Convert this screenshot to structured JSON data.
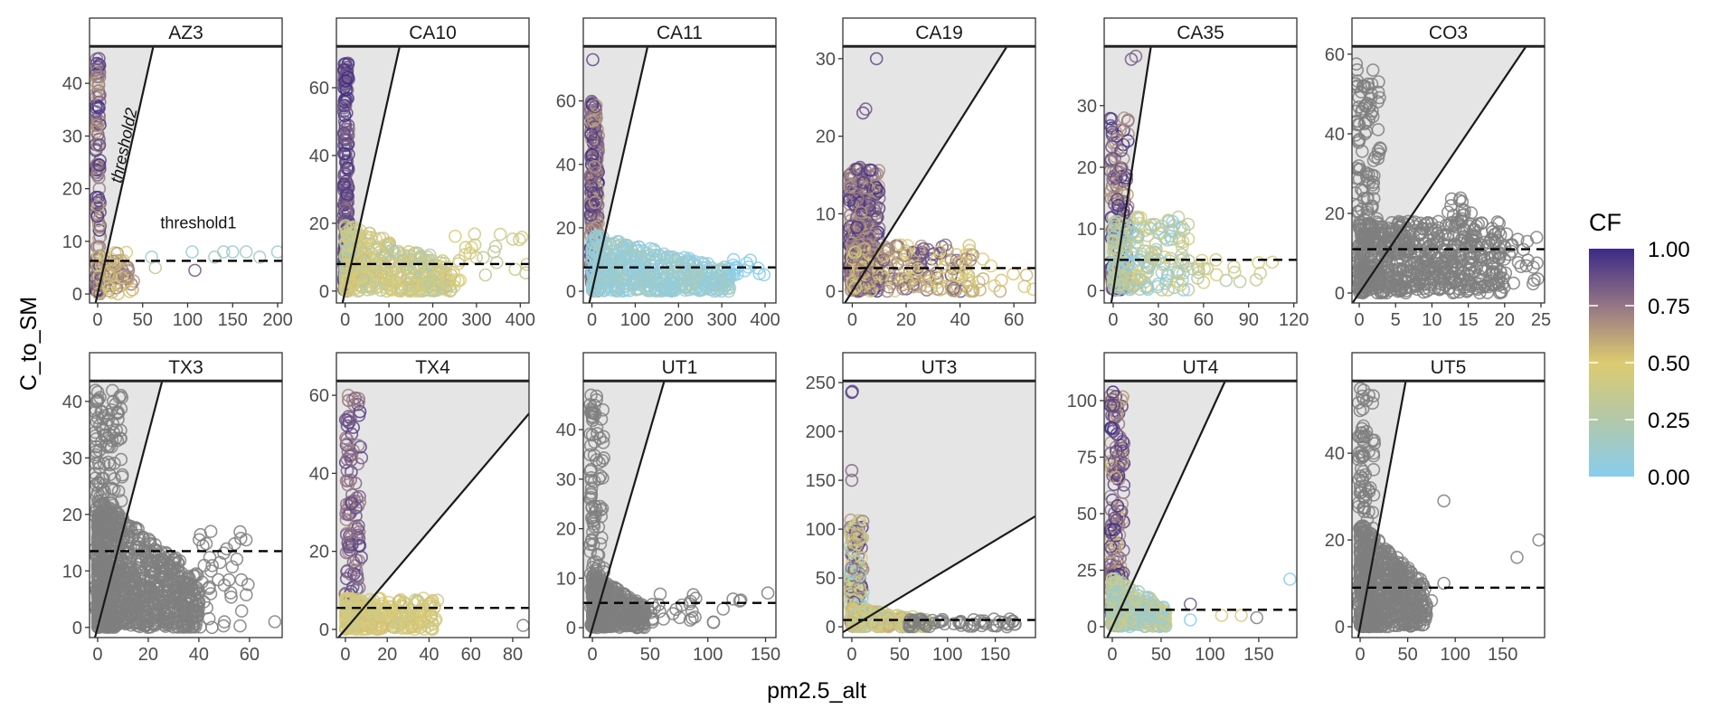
{
  "chart_data": {
    "type": "scatter",
    "facets_layout": "2 rows x 6 columns",
    "xlabel": "pm2.5_alt",
    "ylabel": "C_to_SM",
    "legend": {
      "title": "CF",
      "labels": [
        "1.00",
        "0.75",
        "0.50",
        "0.25",
        "0.00"
      ],
      "range": [
        0,
        1
      ],
      "placement": "right"
    },
    "colorscale": [
      [
        0,
        "#88cdee"
      ],
      [
        0.25,
        "#b3c8a8"
      ],
      [
        0.5,
        "#ddcb70"
      ],
      [
        0.75,
        "#957585"
      ],
      [
        1,
        "#3b2a86"
      ]
    ],
    "na_color": "#7f7f7f",
    "annotations": {
      "threshold1": "threshold1",
      "threshold2": "threshold2"
    },
    "panels": [
      {
        "title": "AZ3",
        "xlim": [
          -9,
          205
        ],
        "ylim": [
          -1.7,
          46.9
        ],
        "xticks": [
          0,
          50,
          100,
          150,
          200
        ],
        "yticks": [
          0,
          10,
          20,
          30,
          40
        ],
        "threshold1": 6.3,
        "threshold2_slope": 0.76,
        "clusters": [
          {
            "n": 120,
            "x": [
              -2,
              3
            ],
            "y": [
              0,
              45
            ],
            "cf": [
              0.6,
              1
            ]
          },
          {
            "n": 80,
            "x": [
              0,
              40
            ],
            "y": [
              0,
              8
            ],
            "cf": [
              0.4,
              0.8
            ]
          }
        ],
        "points": [
          [
            60,
            7,
            0.15
          ],
          [
            105,
            8,
            0.1
          ],
          [
            108,
            4.5,
            0.85
          ],
          [
            130,
            7,
            0.2
          ],
          [
            140,
            8,
            0.15
          ],
          [
            150,
            8,
            0.1
          ],
          [
            165,
            8,
            0.15
          ],
          [
            180,
            7,
            0.2
          ],
          [
            200,
            8,
            0.1
          ],
          [
            64,
            5,
            0.3
          ]
        ]
      },
      {
        "title": "CA10",
        "xlim": [
          -20,
          420
        ],
        "ylim": [
          -3.5,
          72
        ],
        "xticks": [
          0,
          100,
          200,
          300,
          400
        ],
        "yticks": [
          0,
          20,
          40,
          60
        ],
        "threshold1": 8,
        "threshold2_slope": 0.58,
        "clusters": [
          {
            "n": 200,
            "x": [
              -3,
              8
            ],
            "y": [
              0,
              68
            ],
            "cf": [
              0.75,
              1
            ]
          },
          {
            "n": 400,
            "x": [
              0,
              250
            ],
            "y": [
              0,
              20
            ],
            "cf": [
              0.2,
              0.55
            ],
            "shape": "tri"
          },
          {
            "n": 25,
            "x": [
              250,
              420
            ],
            "y": [
              3,
              17
            ],
            "cf": [
              0.3,
              0.5
            ]
          }
        ],
        "points": []
      },
      {
        "title": "CA11",
        "xlim": [
          -20,
          425
        ],
        "ylim": [
          -3.7,
          77
        ],
        "xticks": [
          0,
          100,
          200,
          300,
          400
        ],
        "yticks": [
          0,
          20,
          40,
          60
        ],
        "threshold1": 7.5,
        "threshold2_slope": 0.6,
        "clusters": [
          {
            "n": 250,
            "x": [
              -3,
              15
            ],
            "y": [
              0,
              60
            ],
            "cf": [
              0.6,
              1
            ]
          },
          {
            "n": 500,
            "x": [
              0,
              320
            ],
            "y": [
              0,
              18
            ],
            "cf": [
              0,
              0.2
            ],
            "shape": "tri"
          },
          {
            "n": 15,
            "x": [
              320,
              420
            ],
            "y": [
              5,
              10
            ],
            "cf": [
              0,
              0.05
            ]
          }
        ],
        "points": [
          [
            2,
            73,
            0.9
          ]
        ]
      },
      {
        "title": "CA19",
        "xlim": [
          -3.5,
          68
        ],
        "ylim": [
          -1.5,
          31.5
        ],
        "xticks": [
          0,
          20,
          40,
          60
        ],
        "yticks": [
          0,
          10,
          20,
          30
        ],
        "threshold1": 3,
        "threshold2_slope": 0.55,
        "clusters": [
          {
            "n": 300,
            "x": [
              -1,
              10
            ],
            "y": [
              0,
              16
            ],
            "cf": [
              0.6,
              1
            ]
          },
          {
            "n": 250,
            "x": [
              0,
              45
            ],
            "y": [
              0,
              6
            ],
            "cf": [
              0.4,
              0.9
            ]
          },
          {
            "n": 20,
            "x": [
              40,
              68
            ],
            "y": [
              0,
              5
            ],
            "cf": [
              0.45,
              0.6
            ]
          }
        ],
        "points": [
          [
            4,
            23,
            0.9
          ],
          [
            5,
            23.5,
            0.85
          ],
          [
            9,
            30,
            0.9
          ]
        ]
      },
      {
        "title": "CA35",
        "xlim": [
          -6,
          122
        ],
        "ylim": [
          -2,
          39.5
        ],
        "xticks": [
          0,
          30,
          60,
          90,
          120
        ],
        "yticks": [
          0,
          10,
          20,
          30
        ],
        "threshold1": 5,
        "threshold2_slope": 1.58,
        "clusters": [
          {
            "n": 150,
            "x": [
              -2,
              10
            ],
            "y": [
              0,
              28
            ],
            "cf": [
              0.6,
              1
            ]
          },
          {
            "n": 200,
            "x": [
              0,
              50
            ],
            "y": [
              0,
              12
            ],
            "cf": [
              0,
              0.5
            ]
          },
          {
            "n": 20,
            "x": [
              50,
              120
            ],
            "y": [
              1,
              5
            ],
            "cf": [
              0.2,
              0.5
            ]
          }
        ],
        "points": [
          [
            12,
            37.5,
            0.85
          ],
          [
            15,
            38,
            0.8
          ]
        ]
      },
      {
        "title": "CO3",
        "xlim": [
          -1,
          25.5
        ],
        "ylim": [
          -2.5,
          61.8
        ],
        "xticks": [
          0,
          5,
          10,
          15,
          20,
          25
        ],
        "yticks": [
          0,
          20,
          40,
          60
        ],
        "threshold1": 11,
        "threshold2_slope": 2.7,
        "clusters": [
          {
            "n": 150,
            "x": [
              -0.5,
              3
            ],
            "y": [
              0,
              58
            ],
            "cf": null
          },
          {
            "n": 600,
            "x": [
              0,
              20
            ],
            "y": [
              0,
              18
            ],
            "cf": null
          },
          {
            "n": 40,
            "x": [
              18,
              25
            ],
            "y": [
              2,
              15
            ],
            "cf": null
          },
          {
            "n": 15,
            "x": [
              12,
              15.5
            ],
            "y": [
              18,
              25
            ],
            "cf": null
          }
        ],
        "points": []
      },
      {
        "title": "TX3",
        "xlim": [
          -3.2,
          72.9
        ],
        "ylim": [
          -1.8,
          43.5
        ],
        "xticks": [
          0,
          20,
          40,
          60
        ],
        "yticks": [
          0,
          10,
          20,
          30,
          40
        ],
        "threshold1": 13.5,
        "threshold2_slope": 1.71,
        "clusters": [
          {
            "n": 200,
            "x": [
              -1,
              10
            ],
            "y": [
              0,
              42
            ],
            "cf": null
          },
          {
            "n": 900,
            "x": [
              0,
              40
            ],
            "y": [
              0,
              23
            ],
            "cf": null,
            "shape": "tri"
          },
          {
            "n": 40,
            "x": [
              40,
              60
            ],
            "y": [
              0,
              17
            ],
            "cf": null
          }
        ],
        "points": [
          [
            70,
            1,
            null
          ]
        ]
      },
      {
        "title": "TX4",
        "xlim": [
          -4.3,
          87.8
        ],
        "ylim": [
          -2.1,
          63.5
        ],
        "xticks": [
          0,
          20,
          40,
          60,
          80
        ],
        "yticks": [
          0,
          20,
          40,
          60
        ],
        "threshold1": 5.5,
        "threshold2_slope": 0.63,
        "clusters": [
          {
            "n": 120,
            "x": [
              0,
              8
            ],
            "y": [
              5,
              60
            ],
            "cf": [
              0.7,
              0.95
            ]
          },
          {
            "n": 300,
            "x": [
              0,
              45
            ],
            "y": [
              0,
              8
            ],
            "cf": [
              0.35,
              0.55
            ]
          }
        ],
        "points": [
          [
            85,
            1,
            null
          ]
        ]
      },
      {
        "title": "UT1",
        "xlim": [
          -7.9,
          159
        ],
        "ylim": [
          -2,
          49.7
        ],
        "xticks": [
          0,
          50,
          100,
          150
        ],
        "yticks": [
          0,
          10,
          20,
          30,
          40
        ],
        "threshold1": 5,
        "threshold2_slope": 0.8,
        "clusters": [
          {
            "n": 120,
            "x": [
              -2,
              10
            ],
            "y": [
              0,
              47
            ],
            "cf": null
          },
          {
            "n": 400,
            "x": [
              0,
              45
            ],
            "y": [
              0,
              11
            ],
            "cf": null,
            "shape": "tri"
          },
          {
            "n": 30,
            "x": [
              45,
              130
            ],
            "y": [
              1,
              7
            ],
            "cf": null
          }
        ],
        "points": [
          [
            152,
            7,
            null
          ]
        ]
      },
      {
        "title": "UT3",
        "xlim": [
          -9.4,
          192
        ],
        "ylim": [
          -11,
          251
        ],
        "xticks": [
          0,
          50,
          100,
          150
        ],
        "yticks": [
          0,
          50,
          100,
          150,
          200,
          250
        ],
        "threshold1": 7,
        "threshold2_slope": 0.59,
        "clusters": [
          {
            "n": 150,
            "x": [
              -2,
              12
            ],
            "y": [
              0,
              110
            ],
            "cf": [
              0,
              1
            ]
          },
          {
            "n": 250,
            "x": [
              0,
              80
            ],
            "y": [
              0,
              20
            ],
            "cf": [
              0.2,
              0.6
            ],
            "shape": "tri"
          },
          {
            "n": 60,
            "x": [
              60,
              180
            ],
            "y": [
              0,
              8
            ],
            "cf": null
          }
        ],
        "points": [
          [
            0,
            240,
            0.95
          ],
          [
            0.5,
            241,
            0.9
          ],
          [
            0,
            160,
            0.8
          ],
          [
            0,
            150,
            0.8
          ]
        ]
      },
      {
        "title": "UT4",
        "xlim": [
          -8.3,
          189
        ],
        "ylim": [
          -4.8,
          108.4
        ],
        "xticks": [
          0,
          50,
          100,
          150
        ],
        "yticks": [
          0,
          25,
          50,
          75,
          100
        ],
        "threshold1": 7.5,
        "threshold2_slope": 0.94,
        "clusters": [
          {
            "n": 180,
            "x": [
              -2,
              12
            ],
            "y": [
              0,
              104
            ],
            "cf": [
              0.55,
              1
            ]
          },
          {
            "n": 300,
            "x": [
              0,
              55
            ],
            "y": [
              0,
              22
            ],
            "cf": [
              0,
              0.5
            ],
            "shape": "tri"
          }
        ],
        "points": [
          [
            80,
            10,
            0.85
          ],
          [
            112,
            5,
            0.45
          ],
          [
            132,
            5,
            0.45
          ],
          [
            148,
            4,
            null
          ],
          [
            182,
            21,
            0
          ],
          [
            45,
            4,
            0.1
          ],
          [
            80,
            3,
            0
          ]
        ]
      },
      {
        "title": "UT5",
        "xlim": [
          -8.6,
          194
        ],
        "ylim": [
          -2.5,
          56.5
        ],
        "xticks": [
          0,
          50,
          100,
          150
        ],
        "yticks": [
          0,
          20,
          40
        ],
        "threshold1": 9,
        "threshold2_slope": 1.18,
        "clusters": [
          {
            "n": 120,
            "x": [
              -2,
              15
            ],
            "y": [
              0,
              55
            ],
            "cf": null
          },
          {
            "n": 600,
            "x": [
              0,
              70
            ],
            "y": [
              0,
              24
            ],
            "cf": null,
            "shape": "tri"
          }
        ],
        "points": [
          [
            88,
            29,
            null
          ],
          [
            88,
            10,
            null
          ],
          [
            70,
            5,
            null
          ],
          [
            75,
            6,
            null
          ],
          [
            165,
            16,
            null
          ],
          [
            188,
            20,
            null
          ]
        ]
      }
    ]
  }
}
